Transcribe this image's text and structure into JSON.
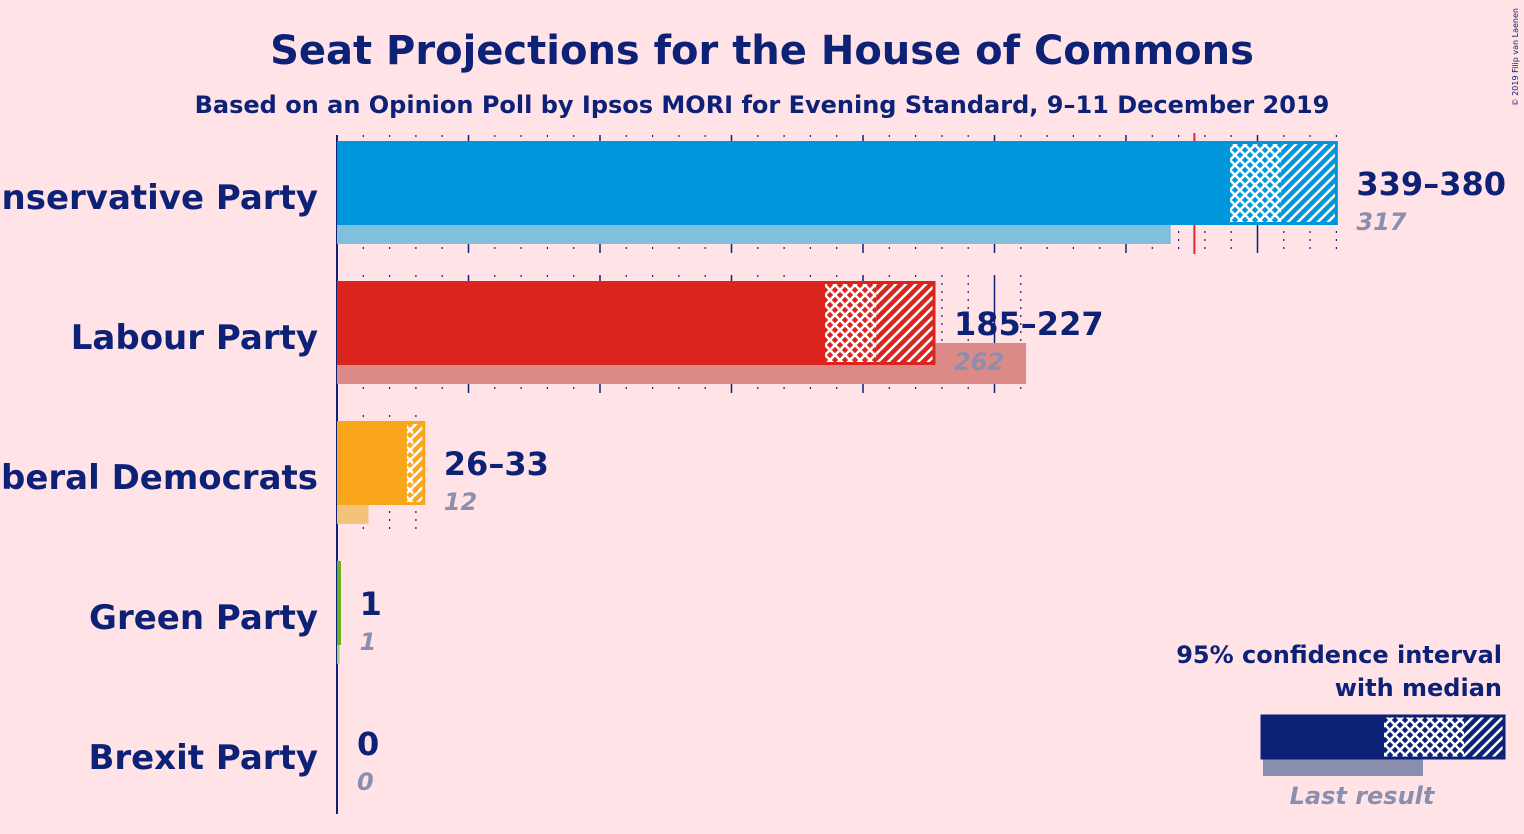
{
  "chart_data": {
    "type": "bar",
    "title": "Seat Projections for the House of Commons",
    "subtitle": "Based on an Opinion Poll by Ipsos MORI for Evening Standard, 9–11 December 2019",
    "copyright": "© 2019 Filip van Laenen",
    "majority_line": 326,
    "x_range": [
      0,
      380
    ],
    "categories": [
      "Conservative Party",
      "Labour Party",
      "Liberal Democrats",
      "Green Party",
      "Brexit Party"
    ],
    "parties": [
      {
        "name": "Conservative Party",
        "low": 339,
        "median": 359,
        "high": 380,
        "last_result": 317,
        "label": "339–380",
        "last_label": "317",
        "color": "#0096db",
        "light": "#80c0dc"
      },
      {
        "name": "Labour Party",
        "low": 185,
        "median": 205,
        "high": 227,
        "last_result": 262,
        "label": "185–227",
        "last_label": "262",
        "color": "#dc241f",
        "light": "#dc8a88"
      },
      {
        "name": "Liberal Democrats",
        "low": 26,
        "median": 29,
        "high": 33,
        "last_result": 12,
        "label": "26–33",
        "last_label": "12",
        "color": "#faa61a",
        "light": "#f5c27a"
      },
      {
        "name": "Green Party",
        "low": 1,
        "median": 1,
        "high": 1,
        "last_result": 1,
        "label": "1",
        "last_label": "1",
        "color": "#6ab023",
        "light": "#a8cc80"
      },
      {
        "name": "Brexit Party",
        "low": 0,
        "median": 0,
        "high": 0,
        "last_result": 0,
        "label": "0",
        "last_label": "0",
        "color": "#12b6cf",
        "light": "#88d4e0"
      }
    ]
  },
  "legend": {
    "line1": "95% confidence interval",
    "line2": "with median",
    "last_result": "Last result"
  },
  "colors": {
    "background": "#ffe3e6",
    "text": "#0d2277",
    "muted": "#8a8fb0",
    "majority": "#e32636"
  }
}
